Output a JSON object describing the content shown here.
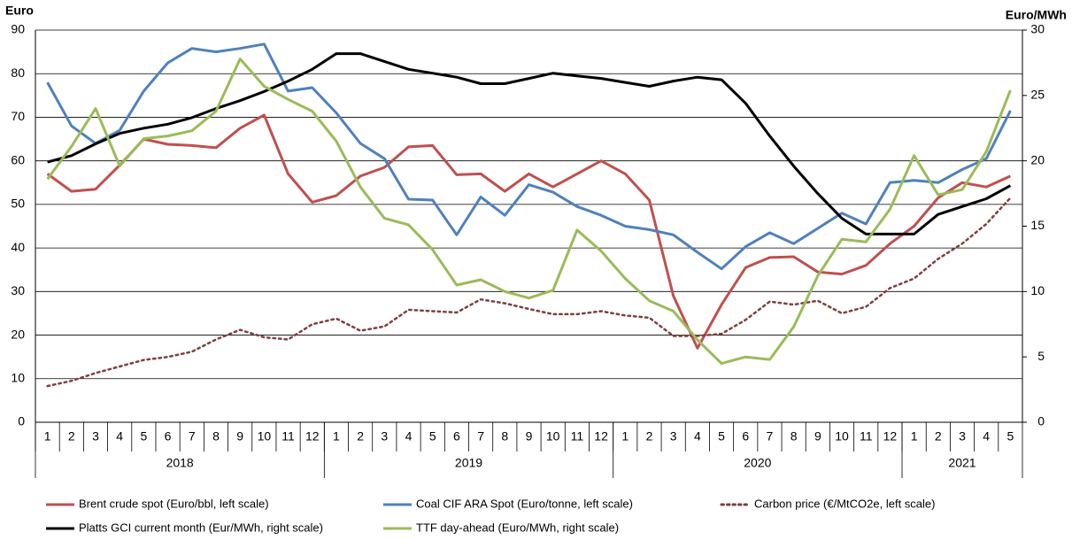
{
  "chart_data": {
    "type": "line",
    "y_label": "Euro",
    "y2_label": "Euro/MWh",
    "categories": [
      "1",
      "2",
      "3",
      "4",
      "5",
      "6",
      "7",
      "8",
      "9",
      "10",
      "11",
      "12",
      "1",
      "2",
      "3",
      "4",
      "5",
      "6",
      "7",
      "8",
      "9",
      "10",
      "11",
      "12",
      "1",
      "2",
      "3",
      "4",
      "5",
      "6",
      "7",
      "8",
      "9",
      "10",
      "11",
      "12",
      "1",
      "2",
      "3",
      "4",
      "5"
    ],
    "groups": [
      "2018",
      "2019",
      "2020",
      "2021"
    ],
    "ylim": [
      0,
      90
    ],
    "yticks": [
      0,
      10,
      20,
      30,
      40,
      50,
      60,
      70,
      80,
      90
    ],
    "y2lim": [
      0,
      30
    ],
    "y2ticks": [
      0,
      5,
      10,
      15,
      20,
      25,
      30
    ],
    "grid": true,
    "series": [
      {
        "name": "Brent crude spot (Euro/bbl, left scale)",
        "color": "#c0504d",
        "style": "solid",
        "values": [
          57,
          53,
          53.5,
          59,
          65,
          63.8,
          63.5,
          63,
          67.5,
          70.5,
          57,
          50.5,
          52,
          56.5,
          58.5,
          63.2,
          63.5,
          56.8,
          57,
          53,
          57,
          54,
          57,
          60,
          57,
          51,
          29,
          17,
          27,
          35.5,
          37.8,
          38,
          34.5,
          34,
          36,
          41,
          45,
          51.5,
          55,
          54,
          56.5
        ]
      },
      {
        "name": "Coal CIF ARA Spot (Euro/tonne, left scale)",
        "color": "#4f81bd",
        "style": "solid",
        "values": [
          78,
          68,
          64,
          67,
          76,
          82.5,
          85.8,
          85,
          85.8,
          86.8,
          76,
          76.8,
          71,
          64,
          60.5,
          51.2,
          51,
          43,
          51.7,
          47.5,
          54.5,
          52.8,
          49.5,
          47.5,
          45,
          44.2,
          43,
          39,
          35.2,
          40.3,
          43.5,
          41,
          44.5,
          48,
          45.5,
          55,
          55.5,
          55,
          58,
          60.5,
          71.5
        ]
      },
      {
        "name": "Carbon price (€/MtCO2e, left scale)",
        "color": "#7f3f3f",
        "style": "dotted",
        "values": [
          8.3,
          9.5,
          11.3,
          12.8,
          14.3,
          15,
          16.2,
          19,
          21.2,
          19.5,
          19,
          22.5,
          23.8,
          21,
          22,
          25.8,
          25.5,
          25.2,
          28.2,
          27.3,
          26,
          24.8,
          24.8,
          25.5,
          24.5,
          24,
          19.8,
          19.8,
          20.3,
          23.5,
          27.7,
          27,
          27.9,
          25,
          26.5,
          30.8,
          33,
          37.5,
          41,
          45.5,
          51.5
        ]
      },
      {
        "name": "Platts GCI current month (Eur/MWh, right scale)",
        "color": "#000000",
        "style": "solid",
        "axis": "y2",
        "values": [
          19.9,
          20.4,
          21.3,
          22.1,
          22.5,
          22.8,
          23.3,
          24,
          24.6,
          25.3,
          26.1,
          27,
          28.2,
          28.2,
          27.6,
          27,
          26.7,
          26.4,
          25.9,
          25.9,
          26.3,
          26.7,
          26.5,
          26.3,
          26,
          25.7,
          26.1,
          26.4,
          26.2,
          24.4,
          21.9,
          19.6,
          17.5,
          15.6,
          14.4,
          14.4,
          14.4,
          15.9,
          16.5,
          17.1,
          18.1
        ]
      },
      {
        "name": "TTF day-ahead (Euro/MWh, right scale)",
        "color": "#9bbb59",
        "style": "solid",
        "axis": "y2",
        "values": [
          18.6,
          21.1,
          24,
          19.6,
          21.7,
          21.9,
          22.3,
          23.8,
          27.8,
          25.7,
          24.7,
          23.8,
          21.5,
          18,
          15.6,
          15.1,
          13.2,
          10.5,
          10.9,
          10,
          9.5,
          10.1,
          14.7,
          13.1,
          11,
          9.3,
          8.5,
          6.3,
          4.5,
          5,
          4.8,
          7.3,
          11.2,
          14,
          13.8,
          16.3,
          20.4,
          17.4,
          17.8,
          20.7,
          25.4
        ]
      }
    ]
  }
}
